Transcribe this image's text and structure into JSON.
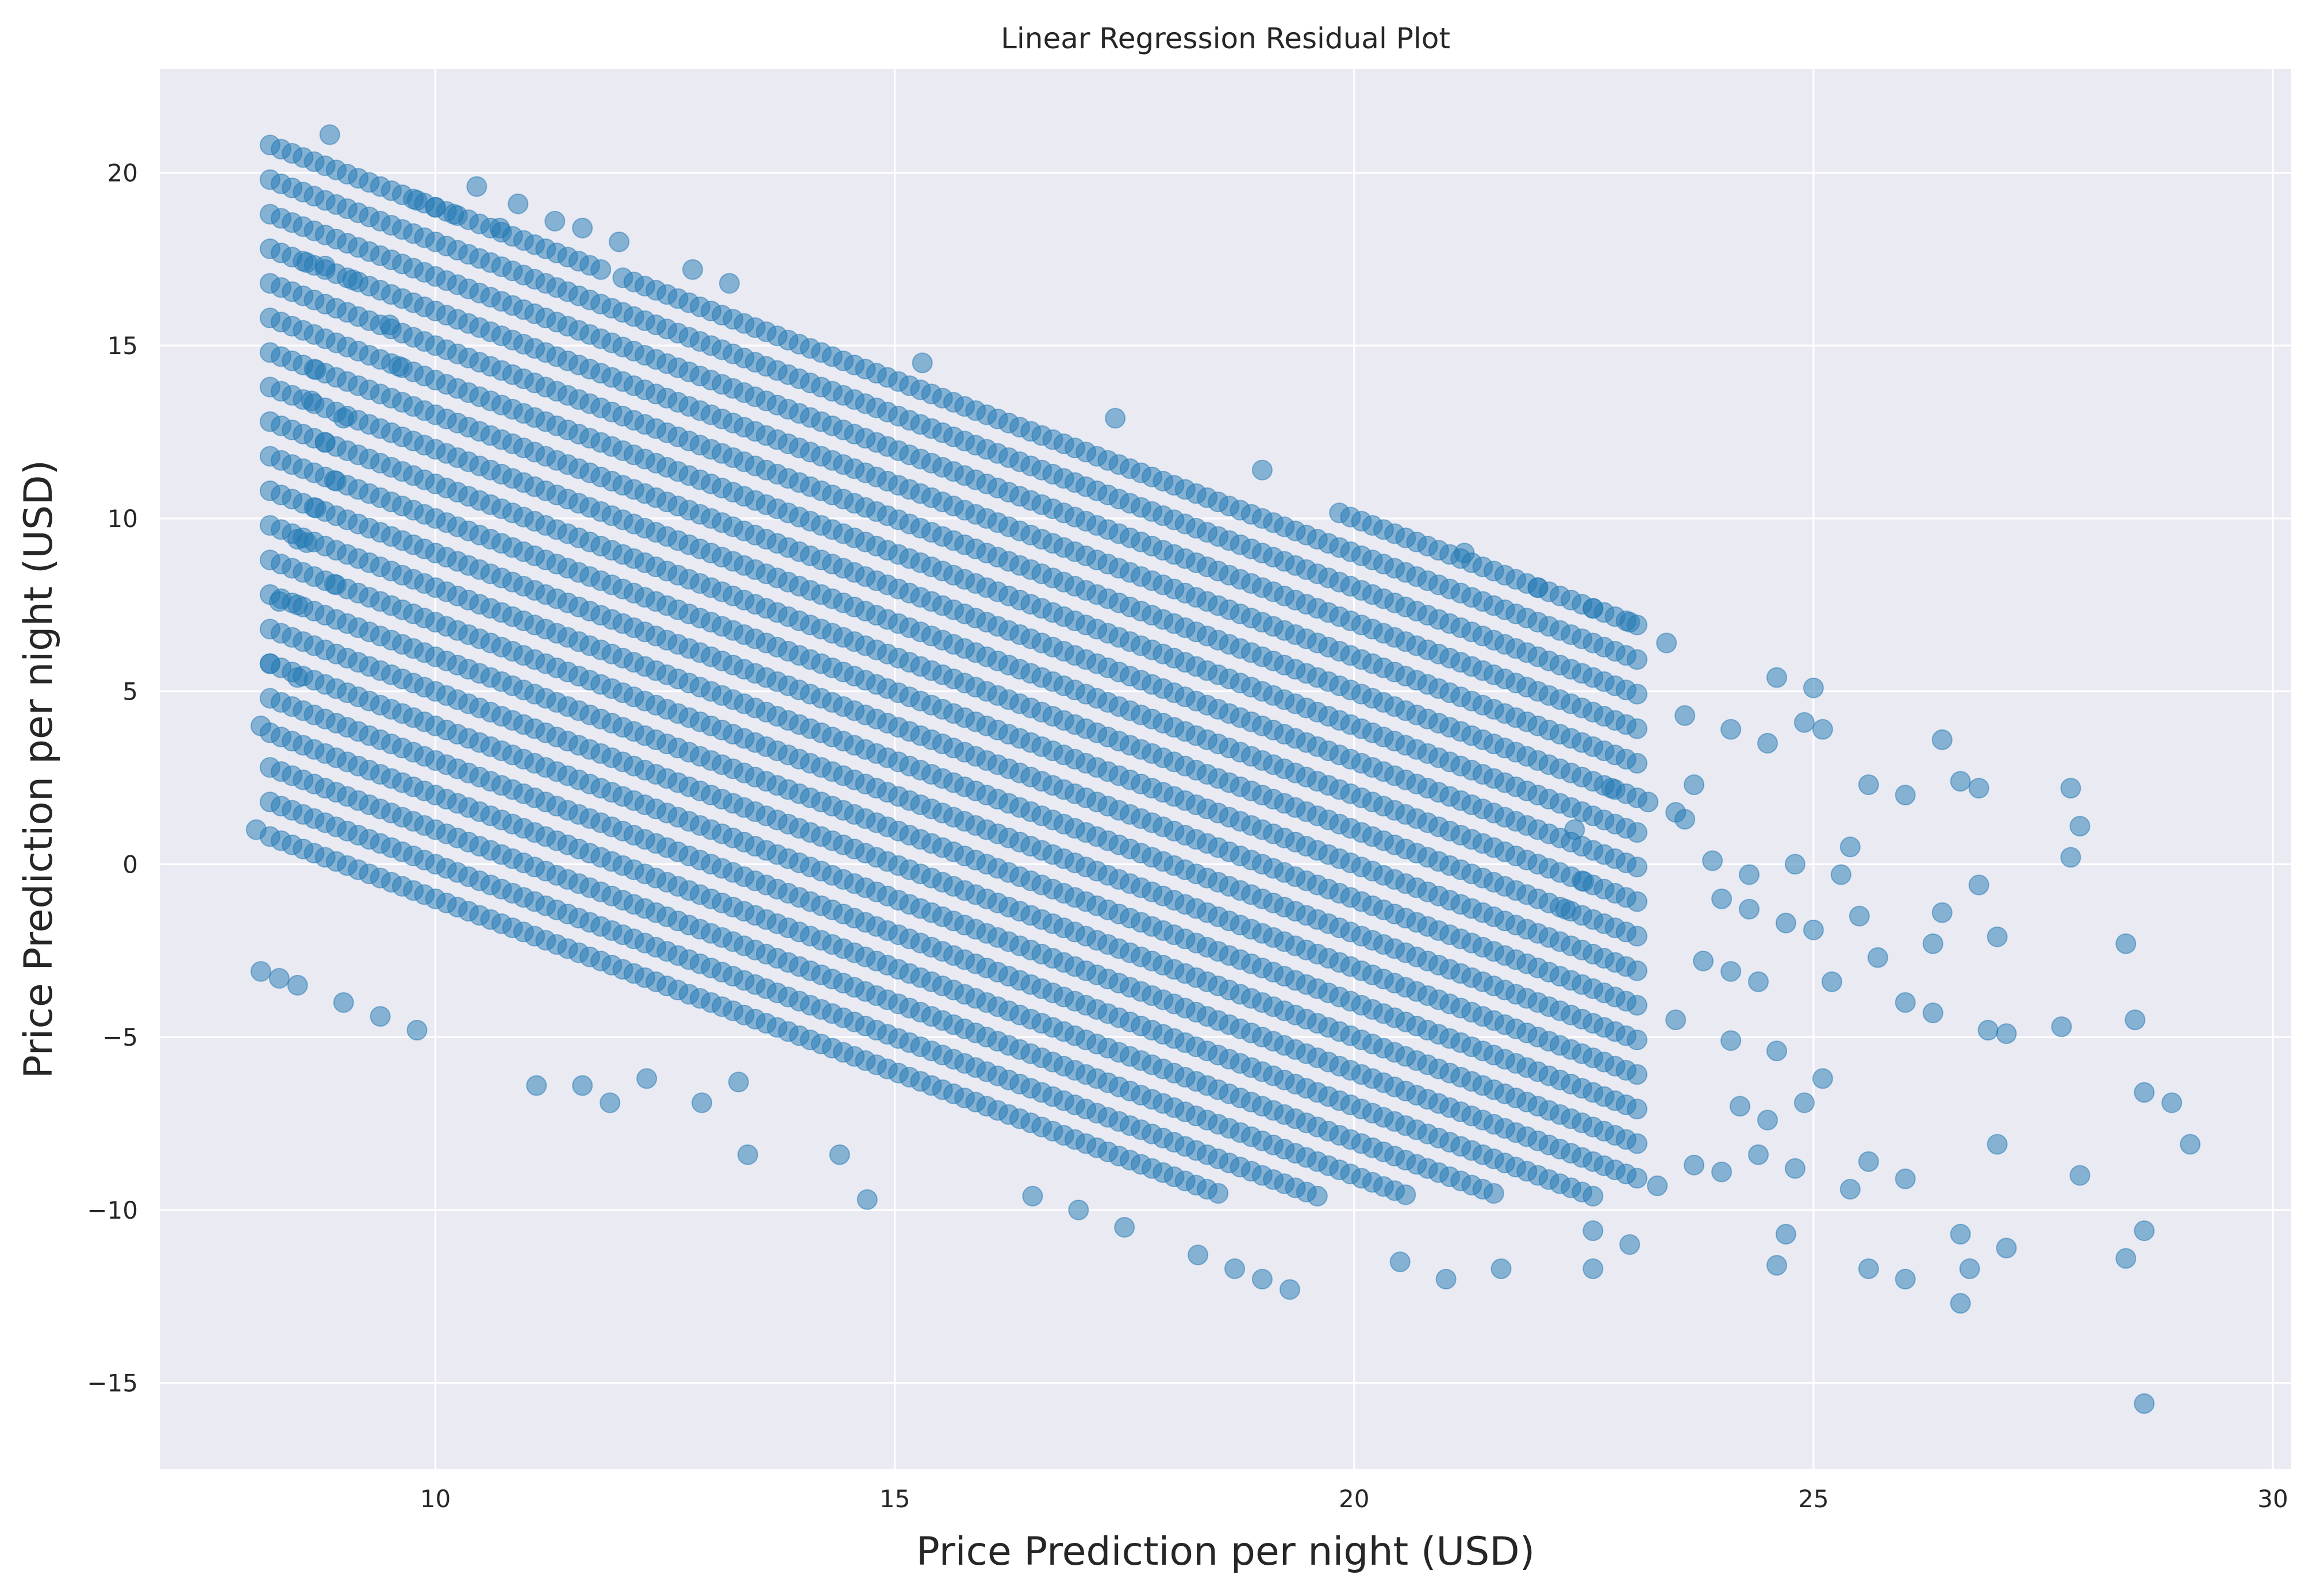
{
  "chart_data": {
    "type": "scatter",
    "title": "Linear Regression Residual Plot",
    "xlabel": "Price Prediction per night (USD)",
    "ylabel": "Price Prediction per night (USD)",
    "xlim": [
      7,
      30.2
    ],
    "ylim": [
      -17.5,
      23
    ],
    "xticks": [
      10,
      15,
      20,
      25,
      30
    ],
    "xtick_labels": [
      "10",
      "15",
      "20",
      "25",
      "30"
    ],
    "yticks": [
      -15,
      -10,
      -5,
      0,
      5,
      10,
      15,
      20
    ],
    "ytick_labels": [
      "−15",
      "−10",
      "−5",
      "0",
      "5",
      "10",
      "15",
      "20"
    ],
    "grid": true,
    "style": {
      "background": "#EAEAF2",
      "grid_color": "#FFFFFF",
      "point_color": "#1F77B4",
      "point_alpha": 0.5
    },
    "series": [
      {
        "points": [
          [
            8.85,
            21.1
          ],
          [
            8.6,
            17.4
          ],
          [
            8.8,
            17.3
          ],
          [
            9.1,
            16.9
          ],
          [
            8.7,
            14.3
          ],
          [
            8.65,
            13.4
          ],
          [
            8.8,
            12.2
          ],
          [
            8.9,
            11.1
          ],
          [
            9.0,
            12.9
          ],
          [
            8.7,
            10.3
          ],
          [
            8.2,
            5.8
          ],
          [
            8.1,
            4.0
          ],
          [
            8.05,
            1.0
          ],
          [
            9.8,
            19.2
          ],
          [
            10.0,
            19.0
          ],
          [
            10.2,
            18.8
          ],
          [
            10.45,
            19.6
          ],
          [
            10.7,
            18.4
          ],
          [
            10.9,
            19.1
          ],
          [
            11.3,
            18.6
          ],
          [
            11.6,
            18.4
          ],
          [
            12.0,
            18.0
          ],
          [
            12.8,
            17.2
          ],
          [
            13.2,
            16.8
          ],
          [
            15.3,
            14.5
          ],
          [
            17.4,
            12.9
          ],
          [
            19.0,
            11.4
          ],
          [
            21.2,
            9.0
          ],
          [
            22.0,
            8.0
          ],
          [
            22.6,
            7.4
          ],
          [
            23.0,
            7.0
          ],
          [
            23.4,
            6.4
          ],
          [
            23.6,
            4.3
          ],
          [
            24.1,
            3.9
          ],
          [
            24.5,
            3.5
          ],
          [
            24.6,
            5.4
          ],
          [
            24.9,
            4.1
          ],
          [
            25.0,
            5.1
          ],
          [
            25.1,
            3.9
          ],
          [
            23.9,
            0.1
          ],
          [
            24.3,
            -0.3
          ],
          [
            24.8,
            0.0
          ],
          [
            25.4,
            0.5
          ],
          [
            25.6,
            2.3
          ],
          [
            26.0,
            2.0
          ],
          [
            26.4,
            3.6
          ],
          [
            26.6,
            2.4
          ],
          [
            26.8,
            2.2
          ],
          [
            27.8,
            2.2
          ],
          [
            27.9,
            1.1
          ],
          [
            27.8,
            0.2
          ],
          [
            26.8,
            -0.6
          ],
          [
            26.4,
            -1.4
          ],
          [
            26.3,
            -2.3
          ],
          [
            25.5,
            -1.5
          ],
          [
            25.3,
            -0.3
          ],
          [
            25.0,
            -1.9
          ],
          [
            25.2,
            -3.4
          ],
          [
            25.7,
            -2.7
          ],
          [
            26.0,
            -4.0
          ],
          [
            26.3,
            -4.3
          ],
          [
            27.0,
            -2.1
          ],
          [
            27.7,
            -4.7
          ],
          [
            26.9,
            -4.8
          ],
          [
            27.1,
            -4.9
          ],
          [
            28.4,
            -2.3
          ],
          [
            28.5,
            -4.5
          ],
          [
            28.6,
            -6.6
          ],
          [
            28.9,
            -6.9
          ],
          [
            29.1,
            -8.1
          ],
          [
            27.0,
            -8.1
          ],
          [
            27.9,
            -9.0
          ],
          [
            26.0,
            -9.1
          ],
          [
            25.6,
            -8.6
          ],
          [
            25.4,
            -9.4
          ],
          [
            24.8,
            -8.8
          ],
          [
            24.4,
            -8.4
          ],
          [
            24.6,
            -11.6
          ],
          [
            24.7,
            -10.7
          ],
          [
            25.6,
            -11.7
          ],
          [
            26.0,
            -12.0
          ],
          [
            26.6,
            -10.7
          ],
          [
            26.6,
            -12.7
          ],
          [
            26.7,
            -11.7
          ],
          [
            27.1,
            -11.1
          ],
          [
            28.4,
            -11.4
          ],
          [
            28.6,
            -10.6
          ],
          [
            28.6,
            -15.6
          ],
          [
            24.2,
            -7.0
          ],
          [
            24.5,
            -7.4
          ],
          [
            24.9,
            -6.9
          ],
          [
            25.1,
            -6.2
          ],
          [
            23.7,
            -8.7
          ],
          [
            24.0,
            -8.9
          ],
          [
            23.3,
            -9.3
          ],
          [
            23.0,
            -11.0
          ],
          [
            22.6,
            -11.7
          ],
          [
            22.6,
            -10.6
          ],
          [
            21.6,
            -11.7
          ],
          [
            21.0,
            -12.0
          ],
          [
            20.5,
            -11.5
          ],
          [
            19.3,
            -12.3
          ],
          [
            19.0,
            -12.0
          ],
          [
            18.7,
            -11.7
          ],
          [
            18.3,
            -11.3
          ],
          [
            17.5,
            -10.5
          ],
          [
            17.0,
            -10.0
          ],
          [
            16.5,
            -9.6
          ],
          [
            14.7,
            -9.7
          ],
          [
            14.4,
            -8.4
          ],
          [
            13.4,
            -8.4
          ],
          [
            11.1,
            -6.4
          ],
          [
            11.6,
            -6.4
          ],
          [
            11.9,
            -6.9
          ],
          [
            12.3,
            -6.2
          ],
          [
            12.9,
            -6.9
          ],
          [
            13.3,
            -6.3
          ],
          [
            8.1,
            -3.1
          ],
          [
            8.3,
            -3.3
          ],
          [
            8.5,
            -3.5
          ],
          [
            9.0,
            -4.0
          ],
          [
            9.4,
            -4.4
          ],
          [
            9.8,
            -4.8
          ],
          [
            8.5,
            9.4
          ],
          [
            8.6,
            9.3
          ],
          [
            8.9,
            8.1
          ],
          [
            8.5,
            7.5
          ],
          [
            8.3,
            7.6
          ],
          [
            8.5,
            5.4
          ],
          [
            9.6,
            14.4
          ],
          [
            9.5,
            15.6
          ],
          [
            22.3,
            -1.3
          ],
          [
            22.5,
            -0.5
          ],
          [
            22.4,
            1.0
          ],
          [
            22.8,
            2.2
          ],
          [
            23.2,
            1.8
          ],
          [
            23.5,
            1.5
          ],
          [
            23.7,
            2.3
          ],
          [
            23.6,
            1.3
          ],
          [
            24.0,
            -1.0
          ],
          [
            24.3,
            -1.3
          ],
          [
            24.7,
            -1.7
          ],
          [
            23.8,
            -2.8
          ],
          [
            24.1,
            -3.1
          ],
          [
            24.4,
            -3.4
          ],
          [
            23.5,
            -4.5
          ],
          [
            24.1,
            -5.1
          ],
          [
            24.6,
            -5.4
          ]
        ],
        "bands": {
          "slope": -1.0,
          "spacing": 1.0,
          "offset_min": 9.0,
          "offset_max": 30.0,
          "x_min": 8.2,
          "x_max_by_offset_rule": "varies",
          "description": "Dense diagonal stripes of points, each stripe y = offset - x, offsets at integer spacing"
        }
      }
    ]
  }
}
